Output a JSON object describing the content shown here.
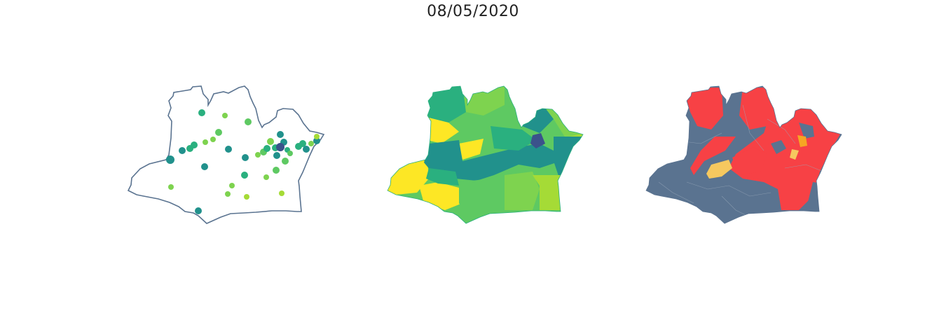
{
  "title": "08/05/2020",
  "colors": {
    "outline": "#5a7390",
    "viridis": [
      "#3b528b",
      "#21918c",
      "#2ab07f",
      "#5ec962",
      "#7ed34f",
      "#a5db36",
      "#fde725"
    ],
    "status_gray": "#5a7390",
    "status_red": "#f74145",
    "status_orange": "#f6a623",
    "status_yellow": "#f6c85f",
    "region_borders": "#9aa9bb"
  },
  "panels": [
    {
      "name": "points-map"
    },
    {
      "name": "choropleth-viridis"
    },
    {
      "name": "status-choropleth"
    }
  ]
}
